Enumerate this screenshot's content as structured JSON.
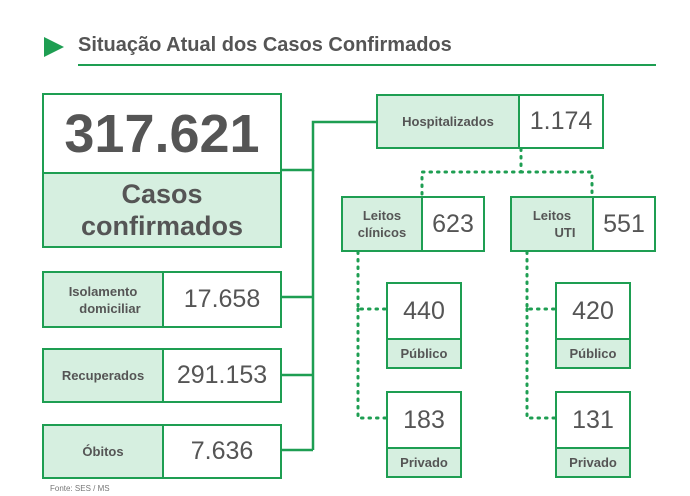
{
  "header": {
    "title": "Situação Atual dos Casos Confirmados"
  },
  "total": {
    "value": "317.621",
    "label_line1": "Casos",
    "label_line2": "confirmados"
  },
  "left_stats": [
    {
      "label_line1": "Isolamento",
      "label_line2": "domiciliar",
      "value": "17.658"
    },
    {
      "label_line1": "Recuperados",
      "label_line2": "",
      "value": "291.153"
    },
    {
      "label_line1": "Óbitos",
      "label_line2": "",
      "value": "7.636"
    }
  ],
  "hospitalized": {
    "label": "Hospitalizados",
    "value": "1.174"
  },
  "beds": [
    {
      "label_line1": "Leitos",
      "label_line2": "clínicos",
      "value": "623",
      "public": {
        "value": "440",
        "label": "Público"
      },
      "private": {
        "value": "183",
        "label": "Privado"
      }
    },
    {
      "label_line1": "Leitos",
      "label_line2": "UTI",
      "value": "551",
      "public": {
        "value": "420",
        "label": "Público"
      },
      "private": {
        "value": "131",
        "label": "Privado"
      }
    }
  ],
  "source": "Fonte: SES / MS",
  "colors": {
    "accent": "#1e9e52",
    "light_fill": "#d6efe0",
    "text": "#555555"
  }
}
